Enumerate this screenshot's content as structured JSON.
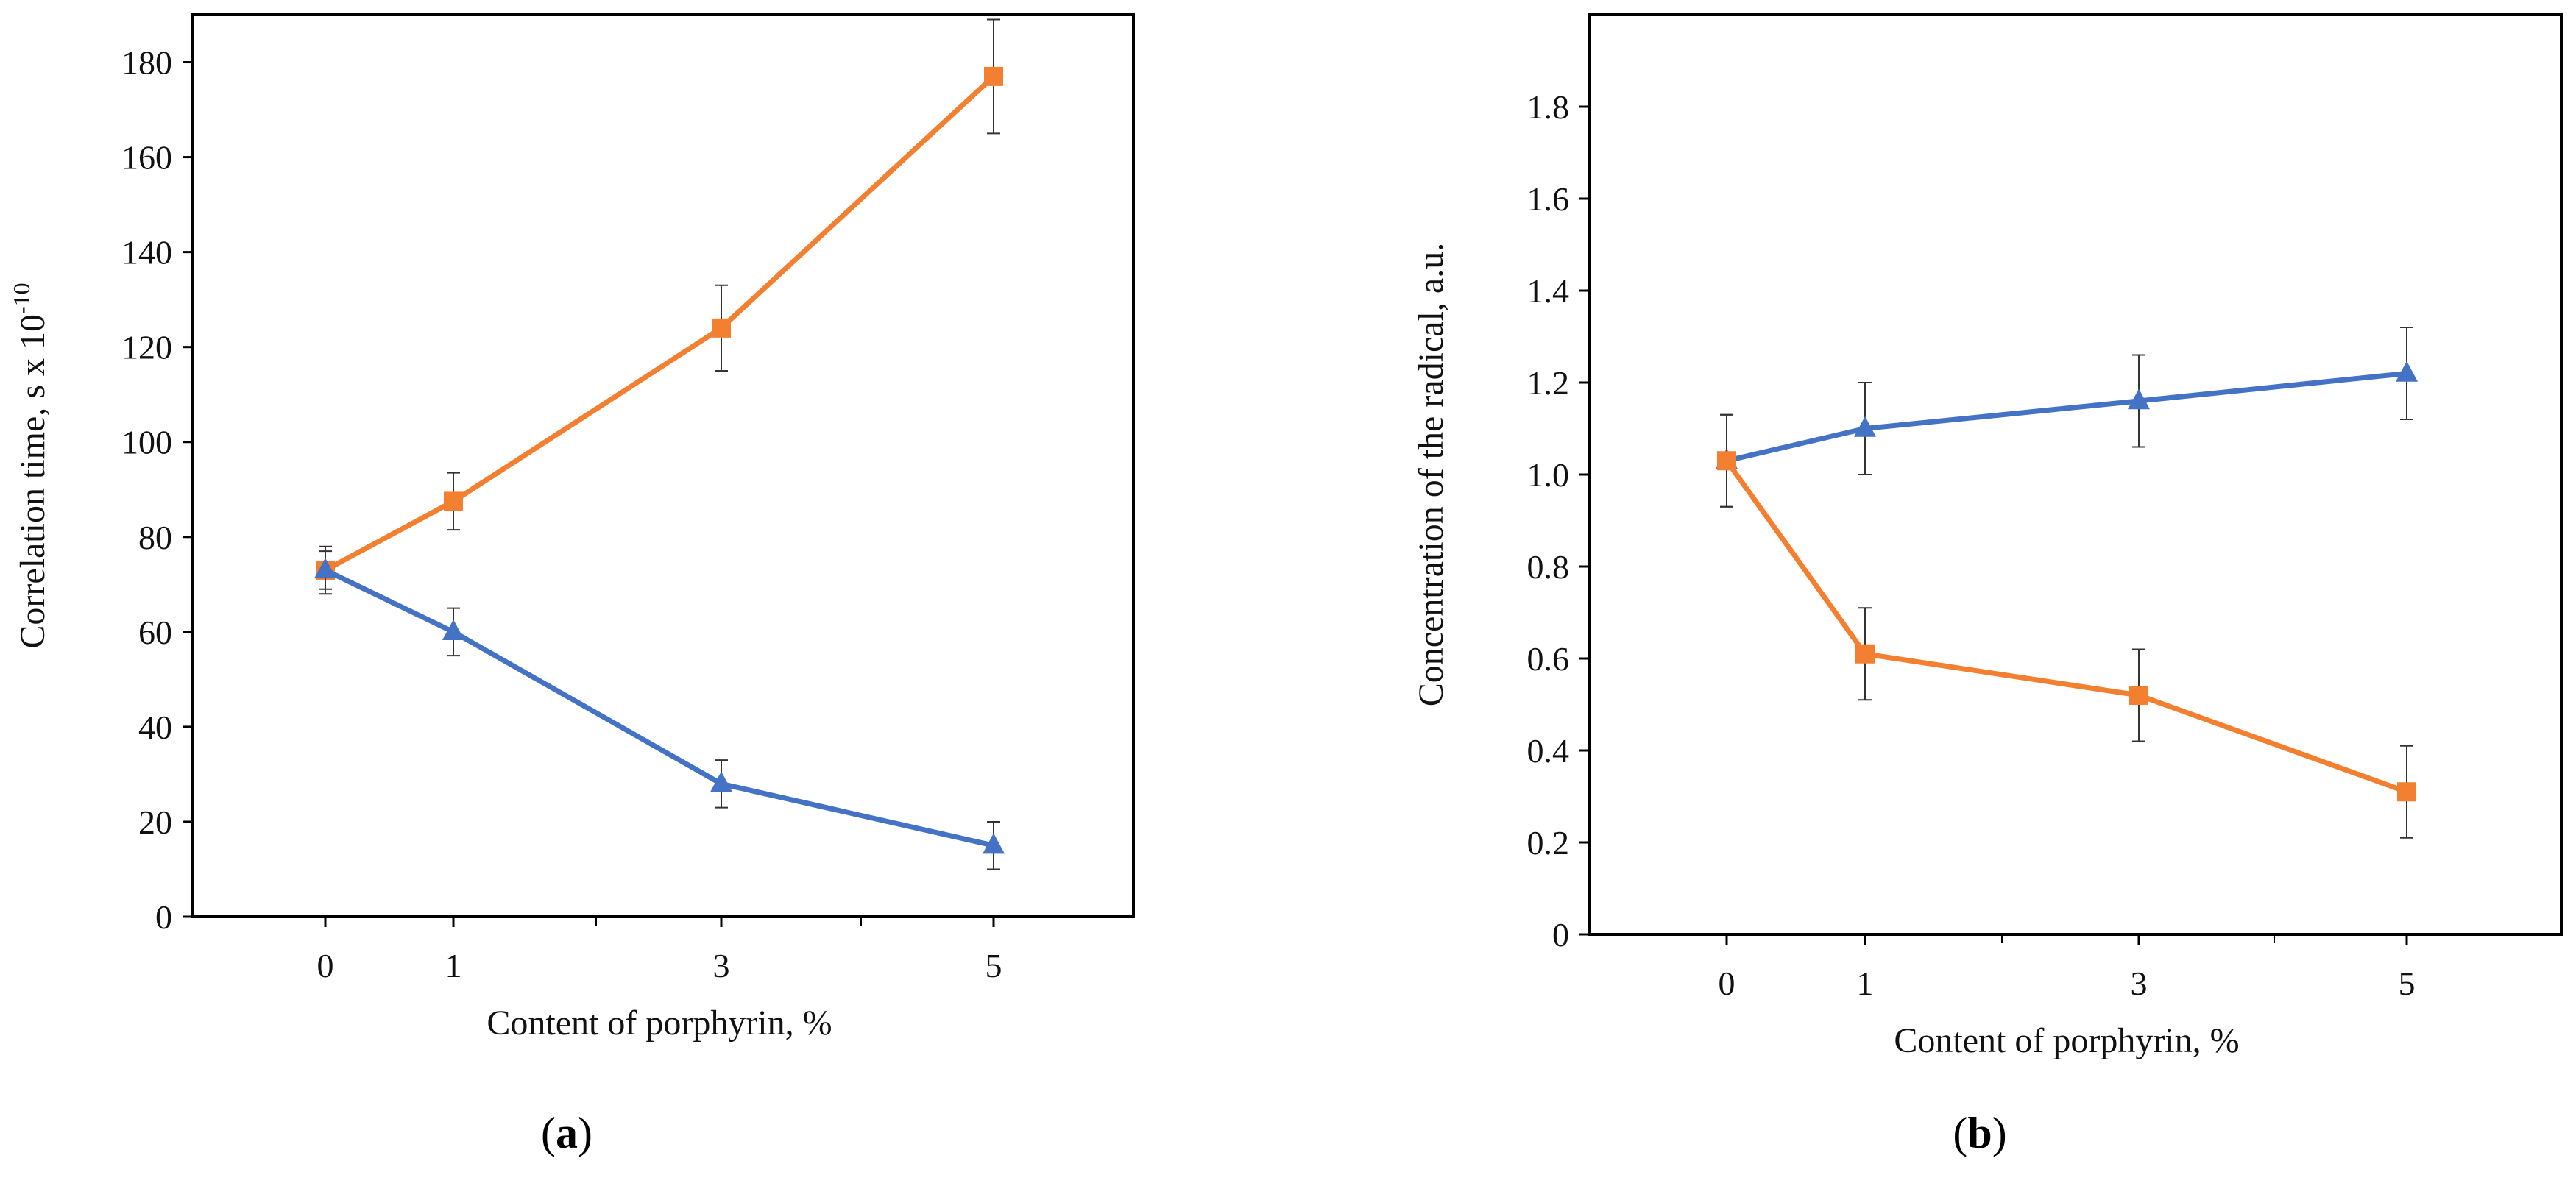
{
  "chart_data": [
    {
      "type": "line",
      "panel_label": {
        "open": "(",
        "letter": "a",
        "close": ")"
      },
      "categories": [
        "0",
        "1",
        "3",
        "5"
      ],
      "xlabel": "Content of porphyrin, %",
      "ylabel": {
        "main": "Correlation time, s x 10",
        "sup": "-10"
      },
      "ylim": [
        0,
        190
      ],
      "yticks": [
        0,
        20,
        40,
        60,
        80,
        100,
        120,
        140,
        160,
        180
      ],
      "ytick_labels": [
        "0",
        "20",
        "40",
        "60",
        "80",
        "100",
        "120",
        "140",
        "160",
        "180"
      ],
      "grid": false,
      "series": [
        {
          "name": "orange",
          "color": "#F28030",
          "marker": "square",
          "values": [
            73,
            87.5,
            124,
            177
          ],
          "errors": [
            4,
            6,
            9,
            12
          ]
        },
        {
          "name": "blue",
          "color": "#4472C4",
          "marker": "triangle",
          "values": [
            73,
            60,
            28,
            15
          ],
          "errors": [
            5,
            5,
            5,
            5
          ]
        }
      ]
    },
    {
      "type": "line",
      "panel_label": {
        "open": "(",
        "letter": "b",
        "close": ")"
      },
      "categories": [
        "0",
        "1",
        "3",
        "5"
      ],
      "xlabel": "Content of porphyrin, %",
      "ylabel": {
        "main": "Concentration of the radical, a.u.",
        "sup": ""
      },
      "ylim": [
        0,
        2.0
      ],
      "yticks": [
        0,
        0.2,
        0.4,
        0.6,
        0.8,
        1.0,
        1.2,
        1.4,
        1.6,
        1.8
      ],
      "ytick_labels": [
        "0",
        "0.2",
        "0.4",
        "0.6",
        "0.8",
        "1.0",
        "1.2",
        "1.4",
        "1.6",
        "1.8"
      ],
      "grid": false,
      "series": [
        {
          "name": "blue",
          "color": "#4472C4",
          "marker": "triangle",
          "values": [
            1.03,
            1.1,
            1.16,
            1.22
          ],
          "errors": [
            0.1,
            0.1,
            0.1,
            0.1
          ]
        },
        {
          "name": "orange",
          "color": "#F28030",
          "marker": "square",
          "values": [
            1.03,
            0.61,
            0.52,
            0.31
          ],
          "errors": [
            0.1,
            0.1,
            0.1,
            0.1
          ]
        }
      ]
    }
  ]
}
